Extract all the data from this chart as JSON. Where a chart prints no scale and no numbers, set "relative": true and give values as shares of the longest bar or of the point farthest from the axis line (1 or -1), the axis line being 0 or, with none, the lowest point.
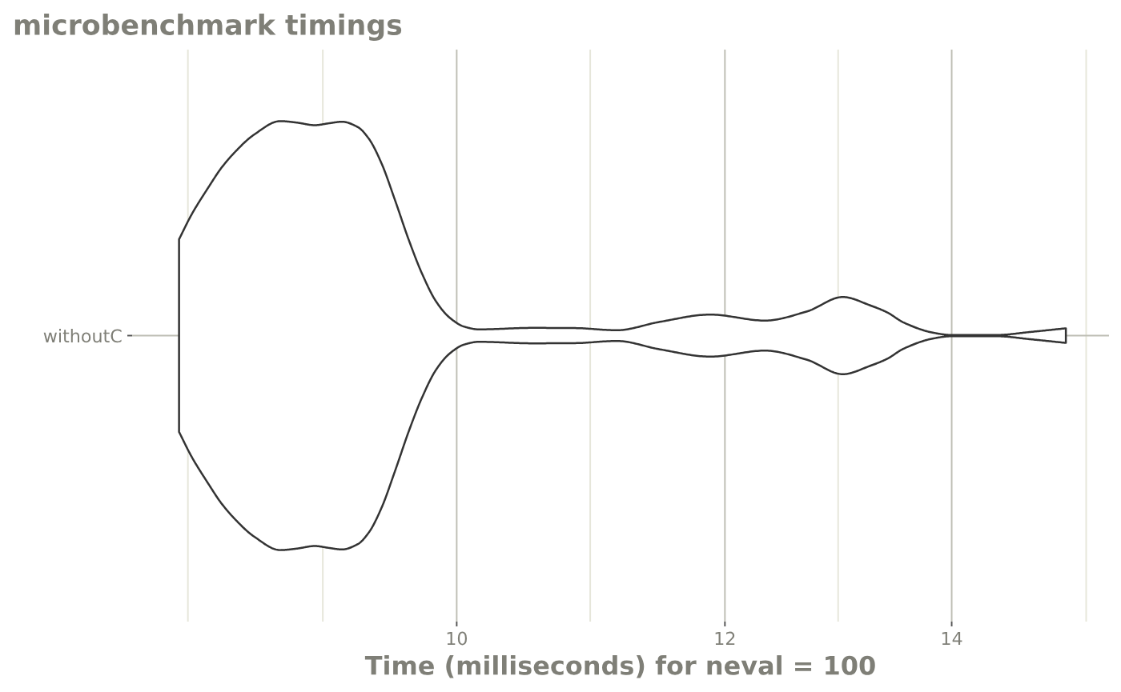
{
  "chart_data": {
    "type": "area",
    "title": "microbenchmark timings",
    "xlabel": "Time (milliseconds) for neval = 100",
    "relative": true,
    "log": "x",
    "grid": true,
    "xlim": [
      8.02,
      15.58
    ],
    "xticks": [
      {
        "value": 8.33,
        "label": null
      },
      {
        "value": 9.13,
        "label": null
      },
      10,
      {
        "value": 10.95,
        "label": null
      },
      12,
      {
        "value": 12.96,
        "label": null
      },
      14,
      {
        "value": 15.34,
        "label": null
      }
    ],
    "series": [
      {
        "name": "withoutC",
        "color": "#333333",
        "x": [
          8.28,
          8.35,
          8.45,
          8.52,
          8.6,
          8.71,
          8.87,
          8.97,
          9.08,
          9.17,
          9.25,
          9.35,
          9.42,
          9.5,
          9.59,
          9.68,
          9.77,
          9.86,
          9.95,
          10.05,
          10.15,
          10.53,
          10.84,
          11.15,
          11.48,
          11.88,
          12.33,
          12.69,
          13.0,
          13.25,
          13.4,
          13.55,
          13.83,
          13.99,
          14.44,
          14.77,
          15.13
        ],
        "values": [
          0.449,
          0.563,
          0.695,
          0.78,
          0.855,
          0.935,
          1.0,
          0.993,
          0.981,
          0.99,
          0.997,
          0.972,
          0.918,
          0.806,
          0.63,
          0.445,
          0.284,
          0.16,
          0.085,
          0.042,
          0.029,
          0.036,
          0.035,
          0.025,
          0.064,
          0.098,
          0.07,
          0.113,
          0.18,
          0.14,
          0.108,
          0.061,
          0.013,
          0.003,
          0.003,
          0.017,
          0.034
        ]
      }
    ]
  }
}
